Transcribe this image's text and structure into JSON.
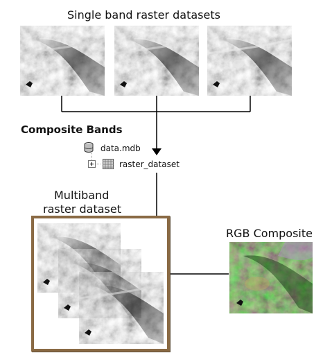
{
  "title": "Single band raster datasets",
  "tool_label": "Composite Bands",
  "tree": {
    "database": "data.mdb",
    "dataset": "raster_dataset"
  },
  "multiband_label_1": "Multiband",
  "multiband_label_2": "raster dataset",
  "rgb_label": "RGB Composite",
  "icons": {
    "database": "database-icon",
    "raster": "raster-grid-icon",
    "expand": "plus-expander-icon"
  },
  "colors": {
    "frame": "#8a6a44",
    "lines": "#000000"
  }
}
